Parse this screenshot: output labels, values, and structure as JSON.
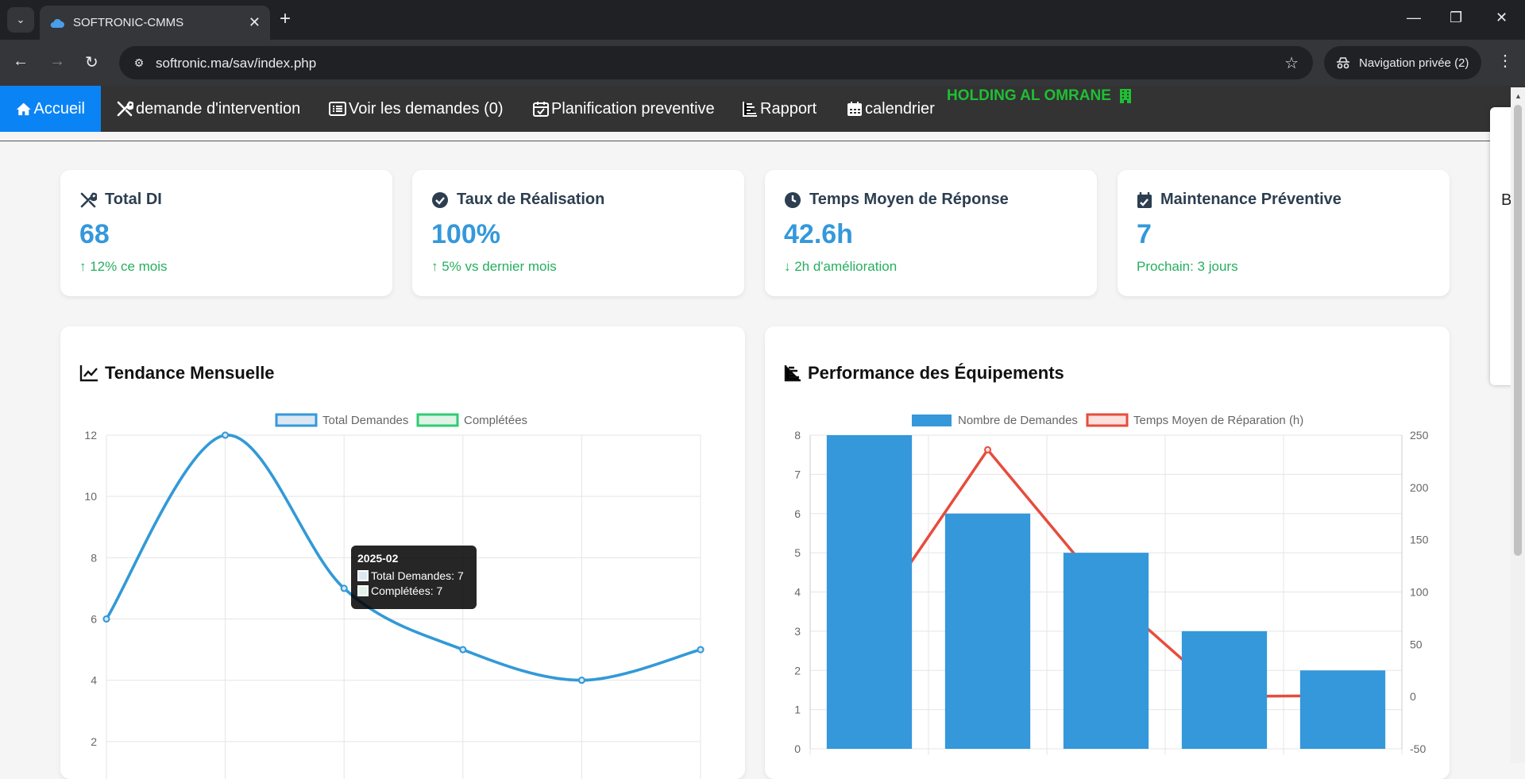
{
  "browser": {
    "tab_title": "SOFTRONIC-CMMS",
    "url": "softronic.ma/sav/index.php",
    "incognito_label": "Navigation privée (2)"
  },
  "nav": {
    "items": [
      {
        "label": "Accueil",
        "icon": "home-icon"
      },
      {
        "label": "demande d'intervention",
        "icon": "tools-icon"
      },
      {
        "label": "Voir les demandes (0)",
        "icon": "list-icon"
      },
      {
        "label": "Planification preventive",
        "icon": "calendar-check-icon"
      },
      {
        "label": "Rapport",
        "icon": "bar-chart-icon"
      },
      {
        "label": "calendrier",
        "icon": "calendar-icon"
      }
    ],
    "brand": "HOLDING AL OMRANE"
  },
  "side_panel_text": "B",
  "kpis": [
    {
      "title": "Total DI",
      "value": "68",
      "sub": "↑ 12% ce mois",
      "icon": "tools-icon"
    },
    {
      "title": "Taux de Réalisation",
      "value": "100%",
      "sub": "↑ 5% vs dernier mois",
      "icon": "check-circle-icon"
    },
    {
      "title": "Temps Moyen de Réponse",
      "value": "42.6h",
      "sub": "↓ 2h d'amélioration",
      "icon": "clock-icon"
    },
    {
      "title": "Maintenance Préventive",
      "value": "7",
      "sub": "Prochain: 3 jours",
      "icon": "calendar-check-icon"
    }
  ],
  "charts": {
    "trend_title": "Tendance Mensuelle",
    "perf_title": "Performance des Équipements"
  },
  "tooltip": {
    "title": "2025-02",
    "line1": "Total Demandes: 7",
    "line2": "Complétées: 7"
  },
  "colors": {
    "accent": "#3498db",
    "green": "#27ae60",
    "red": "#e74c3c",
    "nav_active": "#0a84f5"
  },
  "chart_data": [
    {
      "type": "line",
      "title": "Tendance Mensuelle",
      "series": [
        {
          "name": "Total Demandes",
          "values": [
            6,
            12,
            7,
            5,
            4,
            5
          ],
          "color": "#3498db"
        },
        {
          "name": "Complétées",
          "values": [
            6,
            12,
            7,
            5,
            4,
            5
          ],
          "color": "#2ecc71"
        }
      ],
      "ylim": [
        0,
        12
      ],
      "yticks": [
        "12",
        "10",
        "8",
        "6",
        "4",
        "2"
      ],
      "legend": "top"
    },
    {
      "type": "bar",
      "title": "Performance des Équipements",
      "series": [
        {
          "name": "Nombre de Demandes",
          "type": "bar",
          "values": [
            8,
            6,
            5,
            3,
            2
          ],
          "axis": "left",
          "color": "#3498db"
        },
        {
          "name": "Temps Moyen de Réparation (h)",
          "type": "line",
          "values": [
            70,
            236,
            100,
            0,
            1
          ],
          "axis": "right",
          "color": "#e74c3c"
        }
      ],
      "ylim_left": [
        0,
        8
      ],
      "ylim_right": [
        -50,
        250
      ],
      "yticks_left": [
        "8",
        "7",
        "6",
        "5",
        "4",
        "3",
        "2",
        "1",
        "0"
      ],
      "yticks_right": [
        "250",
        "200",
        "150",
        "100",
        "50",
        "0",
        "-50"
      ],
      "legend": "top"
    }
  ]
}
